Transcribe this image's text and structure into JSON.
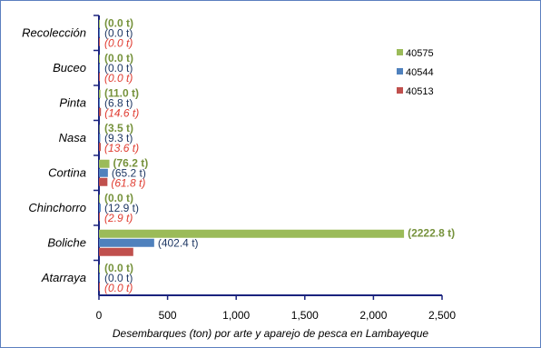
{
  "chart_data": {
    "type": "bar",
    "orientation": "horizontal",
    "xlabel": "Desembarques (ton) por arte y aparejo de pesca en Lambayeque",
    "xlim": [
      0,
      2500
    ],
    "xticks": [
      0,
      500,
      1000,
      1500,
      2000,
      2500
    ],
    "xtick_labels": [
      "0",
      "500",
      "1,000",
      "1,500",
      "2,000",
      "2,500"
    ],
    "grid": false,
    "legend_position": "right",
    "categories": [
      "Recolección",
      "Buceo",
      "Pinta",
      "Nasa",
      "Cortina",
      "Chinchorro",
      "Boliche",
      "Atarraya"
    ],
    "series": [
      {
        "name": "40575",
        "color": "#9bbb59",
        "values": [
          0.0,
          0.0,
          11.0,
          3.5,
          76.2,
          0.0,
          2222.8,
          0.0
        ],
        "labels": [
          "(0.0 t)",
          "(0.0 t)",
          "(11.0 t)",
          "(3.5 t)",
          "(76.2 t)",
          "(0.0 t)",
          "(2222.8 t)",
          "(0.0 t)"
        ]
      },
      {
        "name": "40544",
        "color": "#4f81bd",
        "values": [
          0.0,
          0.0,
          6.8,
          9.3,
          65.2,
          12.9,
          402.4,
          0.0
        ],
        "labels": [
          "(0.0 t)",
          "(0.0 t)",
          "(6.8 t)",
          "(9.3 t)",
          "(65.2 t)",
          "(12.9 t)",
          "(402.4 t)",
          "(0.0 t)"
        ]
      },
      {
        "name": "40513",
        "color": "#c0504d",
        "values": [
          0.0,
          0.0,
          14.6,
          13.6,
          61.8,
          2.9,
          250.0,
          0.0
        ],
        "labels": [
          "(0.0 t)",
          "(0.0 t)",
          "(14.6 t)",
          "(13.6 t)",
          "(61.8 t)",
          "(2.9 t)",
          "",
          "(0.0 t)"
        ]
      }
    ],
    "legend_order": [
      "40575",
      "40544",
      "40513"
    ]
  }
}
